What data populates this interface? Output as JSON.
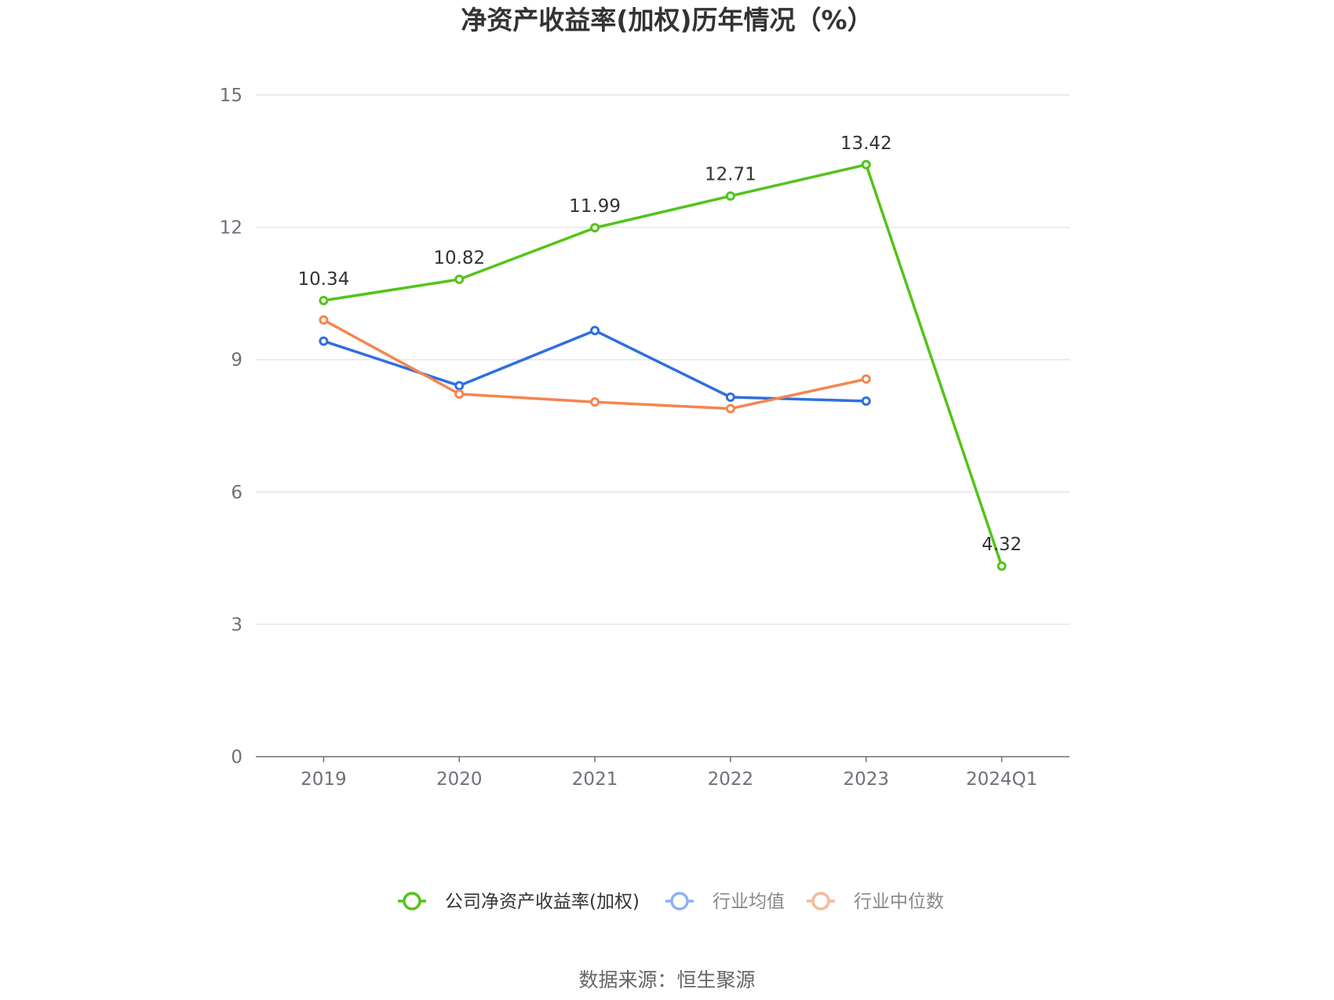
{
  "chart_data": {
    "type": "line",
    "title": "净资产收益率(加权)历年情况（%）",
    "categories": [
      "2019",
      "2020",
      "2021",
      "2022",
      "2023",
      "2024Q1"
    ],
    "ylim": [
      0,
      15
    ],
    "yticks": [
      "0",
      "3",
      "6",
      "9",
      "12",
      "15"
    ],
    "grid": true,
    "legend_position": "bottom",
    "series": [
      {
        "name": "公司净资产收益率(加权)",
        "color": "#52c41a",
        "values": [
          10.34,
          10.82,
          11.99,
          12.71,
          13.42,
          4.32
        ],
        "labels": [
          "10.34",
          "10.82",
          "11.99",
          "12.71",
          "13.42",
          "4.32"
        ],
        "show_labels": true
      },
      {
        "name": "行业均值",
        "color": "#2f6fde",
        "values": [
          9.42,
          8.41,
          9.66,
          8.15,
          8.06,
          null
        ],
        "show_labels": false
      },
      {
        "name": "行业中位数",
        "color": "#f5854f",
        "values": [
          9.9,
          8.22,
          8.04,
          7.89,
          8.56,
          null
        ],
        "show_labels": false
      }
    ],
    "legend_colors": [
      "#52c41a",
      "#8fb0f0",
      "#f7b79a"
    ],
    "legend_text_colors": [
      "#333333",
      "#888888",
      "#888888"
    ],
    "source": "数据来源：恒生聚源"
  }
}
